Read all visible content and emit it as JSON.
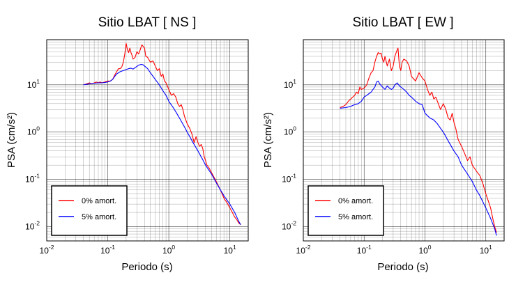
{
  "colors": {
    "undamped": "#ff0000",
    "damped": "#0000ff",
    "grid": "#000000",
    "frame": "#000000"
  },
  "chart_data": [
    {
      "type": "line",
      "title": "Sitio LBAT [ NS ]",
      "xlabel": "Periodo (s)",
      "ylabel": "PSA (cm/s²)",
      "xscale": "log",
      "yscale": "log",
      "xlim": [
        0.01,
        20
      ],
      "ylim": [
        0.005,
        90
      ],
      "grid": true,
      "legend_position": "bottom-left",
      "x_ticks": [
        {
          "base": "10",
          "exp": "-2",
          "v": 0.01
        },
        {
          "base": "10",
          "exp": "-1",
          "v": 0.1
        },
        {
          "base": "10",
          "exp": "0",
          "v": 1
        },
        {
          "base": "10",
          "exp": "1",
          "v": 10
        }
      ],
      "y_ticks": [
        {
          "base": "10",
          "exp": "-2",
          "v": 0.01
        },
        {
          "base": "10",
          "exp": "-1",
          "v": 0.1
        },
        {
          "base": "10",
          "exp": "0",
          "v": 1
        },
        {
          "base": "10",
          "exp": "1",
          "v": 10
        }
      ],
      "series": [
        {
          "name": "0% amort.",
          "color": "#ff0000",
          "x": [
            0.04,
            0.045,
            0.05,
            0.055,
            0.06,
            0.065,
            0.07,
            0.075,
            0.08,
            0.09,
            0.1,
            0.11,
            0.12,
            0.13,
            0.14,
            0.15,
            0.16,
            0.17,
            0.18,
            0.19,
            0.2,
            0.21,
            0.22,
            0.23,
            0.24,
            0.25,
            0.26,
            0.28,
            0.3,
            0.32,
            0.34,
            0.36,
            0.38,
            0.4,
            0.42,
            0.45,
            0.5,
            0.55,
            0.6,
            0.65,
            0.7,
            0.75,
            0.8,
            0.85,
            0.9,
            1.0,
            1.1,
            1.2,
            1.3,
            1.4,
            1.5,
            1.6,
            1.7,
            1.8,
            2.0,
            2.2,
            2.4,
            2.6,
            2.8,
            3.0,
            3.2,
            3.4,
            3.6,
            3.8,
            4.0,
            4.2,
            4.5,
            5.0,
            6.0,
            7.0,
            8.0,
            9.0,
            10.0,
            11.0,
            12.0,
            13.0,
            14.0,
            15.0
          ],
          "y": [
            10.0,
            10.5,
            11.0,
            10.5,
            11.0,
            11.5,
            11.0,
            11.5,
            11.0,
            11.5,
            12.0,
            12.0,
            13.0,
            16.0,
            19.0,
            22.0,
            22.0,
            24.0,
            30.0,
            45.0,
            75.0,
            55.0,
            48.0,
            60.0,
            48.0,
            42.0,
            35.0,
            38.0,
            50.0,
            45.0,
            55.0,
            70.0,
            65.0,
            60.0,
            40.0,
            38.0,
            30.0,
            32.0,
            25.0,
            20.0,
            22.0,
            15.0,
            17.0,
            12.0,
            11.0,
            8.0,
            6.0,
            6.5,
            5.5,
            4.0,
            3.5,
            3.8,
            3.0,
            2.2,
            1.5,
            1.2,
            0.9,
            0.6,
            0.8,
            0.6,
            0.5,
            0.55,
            0.45,
            0.3,
            0.25,
            0.2,
            0.18,
            0.14,
            0.09,
            0.06,
            0.04,
            0.032,
            0.025,
            0.02,
            0.016,
            0.014,
            0.012,
            0.011
          ]
        },
        {
          "name": "5% amort.",
          "color": "#0000ff",
          "x": [
            0.04,
            0.05,
            0.06,
            0.07,
            0.08,
            0.09,
            0.1,
            0.11,
            0.12,
            0.13,
            0.14,
            0.15,
            0.16,
            0.18,
            0.2,
            0.22,
            0.24,
            0.26,
            0.28,
            0.3,
            0.32,
            0.35,
            0.38,
            0.4,
            0.45,
            0.5,
            0.6,
            0.7,
            0.8,
            0.9,
            1.0,
            1.2,
            1.4,
            1.6,
            1.8,
            2.0,
            2.5,
            3.0,
            3.5,
            4.0,
            5.0,
            6.0,
            7.0,
            8.0,
            10.0,
            12.0,
            14.0,
            15.0
          ],
          "y": [
            10.0,
            10.5,
            10.8,
            11.0,
            11.0,
            11.2,
            11.5,
            12.0,
            13.0,
            15.0,
            17.0,
            18.0,
            19.0,
            20.0,
            21.0,
            22.0,
            22.5,
            21.5,
            23.0,
            24.5,
            26.0,
            27.0,
            26.5,
            25.0,
            22.0,
            18.0,
            13.0,
            10.0,
            7.5,
            6.0,
            4.5,
            3.2,
            2.3,
            1.7,
            1.3,
            1.0,
            0.6,
            0.4,
            0.28,
            0.2,
            0.13,
            0.085,
            0.06,
            0.045,
            0.03,
            0.02,
            0.013,
            0.011
          ]
        }
      ]
    },
    {
      "type": "line",
      "title": "Sitio LBAT [ EW ]",
      "xlabel": "Periodo (s)",
      "ylabel": "PSA (cm/s²)",
      "xscale": "log",
      "yscale": "log",
      "xlim": [
        0.01,
        20
      ],
      "ylim": [
        0.005,
        90
      ],
      "grid": true,
      "legend_position": "bottom-left",
      "x_ticks": [
        {
          "base": "10",
          "exp": "-2",
          "v": 0.01
        },
        {
          "base": "10",
          "exp": "-1",
          "v": 0.1
        },
        {
          "base": "10",
          "exp": "0",
          "v": 1
        },
        {
          "base": "10",
          "exp": "1",
          "v": 10
        }
      ],
      "y_ticks": [
        {
          "base": "10",
          "exp": "-2",
          "v": 0.01
        },
        {
          "base": "10",
          "exp": "-1",
          "v": 0.1
        },
        {
          "base": "10",
          "exp": "0",
          "v": 1
        },
        {
          "base": "10",
          "exp": "1",
          "v": 10
        }
      ],
      "series": [
        {
          "name": "0% amort.",
          "color": "#ff0000",
          "x": [
            0.04,
            0.045,
            0.05,
            0.055,
            0.06,
            0.065,
            0.07,
            0.075,
            0.08,
            0.085,
            0.09,
            0.1,
            0.11,
            0.12,
            0.13,
            0.14,
            0.15,
            0.16,
            0.17,
            0.18,
            0.19,
            0.2,
            0.21,
            0.22,
            0.24,
            0.26,
            0.28,
            0.3,
            0.32,
            0.34,
            0.36,
            0.38,
            0.4,
            0.42,
            0.45,
            0.5,
            0.55,
            0.6,
            0.7,
            0.8,
            0.9,
            1.0,
            1.1,
            1.2,
            1.3,
            1.4,
            1.5,
            1.6,
            1.8,
            2.0,
            2.2,
            2.4,
            2.6,
            2.8,
            3.0,
            3.2,
            3.5,
            4.0,
            4.5,
            5.0,
            5.5,
            6.0,
            7.0,
            8.0,
            9.0,
            10.0,
            11.0,
            12.0,
            13.0,
            14.0,
            15.0
          ],
          "y": [
            3.3,
            3.5,
            3.8,
            4.5,
            5.0,
            5.5,
            6.0,
            7.0,
            6.5,
            9.0,
            8.0,
            8.5,
            10.0,
            14.0,
            18.0,
            20.0,
            30.0,
            40.0,
            48.0,
            45.0,
            47.0,
            35.0,
            30.0,
            40.0,
            25.0,
            35.0,
            20.0,
            25.0,
            40.0,
            50.0,
            60.0,
            25.0,
            20.0,
            30.0,
            35.0,
            32.0,
            25.0,
            15.0,
            12.0,
            18.0,
            14.0,
            12.0,
            8.0,
            6.0,
            7.0,
            5.0,
            5.5,
            4.5,
            3.0,
            4.0,
            3.0,
            2.0,
            1.8,
            2.5,
            1.6,
            1.2,
            0.7,
            0.5,
            0.35,
            0.25,
            0.3,
            0.2,
            0.15,
            0.12,
            0.08,
            0.05,
            0.035,
            0.025,
            0.015,
            0.01,
            0.0075
          ]
        },
        {
          "name": "5% amort.",
          "color": "#0000ff",
          "x": [
            0.04,
            0.05,
            0.06,
            0.07,
            0.08,
            0.09,
            0.1,
            0.11,
            0.12,
            0.13,
            0.14,
            0.15,
            0.16,
            0.17,
            0.18,
            0.2,
            0.22,
            0.24,
            0.26,
            0.28,
            0.3,
            0.32,
            0.35,
            0.38,
            0.4,
            0.45,
            0.5,
            0.55,
            0.6,
            0.7,
            0.8,
            0.9,
            1.0,
            1.2,
            1.4,
            1.6,
            1.8,
            2.0,
            2.5,
            3.0,
            3.5,
            4.0,
            5.0,
            6.0,
            7.0,
            8.0,
            10.0,
            12.0,
            14.0,
            15.0
          ],
          "y": [
            3.2,
            3.3,
            3.5,
            3.8,
            4.0,
            4.5,
            5.5,
            6.0,
            6.5,
            7.0,
            8.0,
            9.0,
            11.5,
            12.0,
            10.5,
            9.0,
            8.0,
            9.5,
            8.5,
            8.0,
            8.5,
            10.0,
            11.0,
            9.5,
            9.0,
            8.0,
            7.0,
            6.0,
            5.5,
            4.5,
            4.0,
            3.8,
            2.5,
            2.0,
            1.8,
            1.5,
            1.2,
            1.0,
            0.6,
            0.4,
            0.3,
            0.2,
            0.13,
            0.09,
            0.06,
            0.045,
            0.025,
            0.015,
            0.009,
            0.0065
          ]
        }
      ]
    }
  ]
}
